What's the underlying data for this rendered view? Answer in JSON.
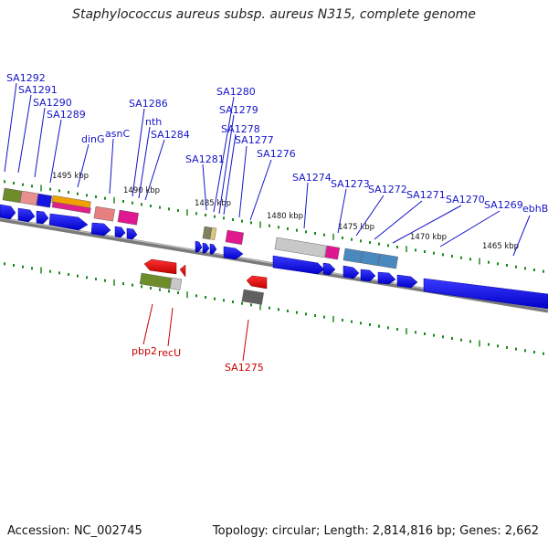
{
  "title": "Staphylococcus aureus subsp. aureus N315, complete genome",
  "footer": {
    "accession": "Accession: NC_002745",
    "topology": "Topology: circular; Length: 2,814,816 bp; Genes: 2,662"
  },
  "kbp_labels": [
    "1495 kbp",
    "1490 kbp",
    "1485 kbp",
    "1480 kbp",
    "1475 kbp",
    "1470 kbp",
    "1465 kbp"
  ],
  "forward_labels": [
    "SA1292",
    "SA1291",
    "SA1290",
    "SA1289",
    "dinG",
    "asnC",
    "SA1286",
    "nth",
    "SA1284",
    "SA1281",
    "SA1280",
    "SA1279",
    "SA1278",
    "SA1277",
    "SA1276",
    "SA1274",
    "SA1273",
    "SA1272",
    "SA1271",
    "SA1270",
    "SA1269",
    "ebhB"
  ],
  "reverse_labels": [
    "pbp2",
    "recU",
    "SA1275"
  ],
  "colors": {
    "forward_arrow": "#1010e8",
    "reverse_arrow": "#e00000",
    "forward_label": "#1515c8",
    "reverse_label": "#c80000",
    "backbone": "#808080",
    "tick": "#1a8a1a"
  }
}
